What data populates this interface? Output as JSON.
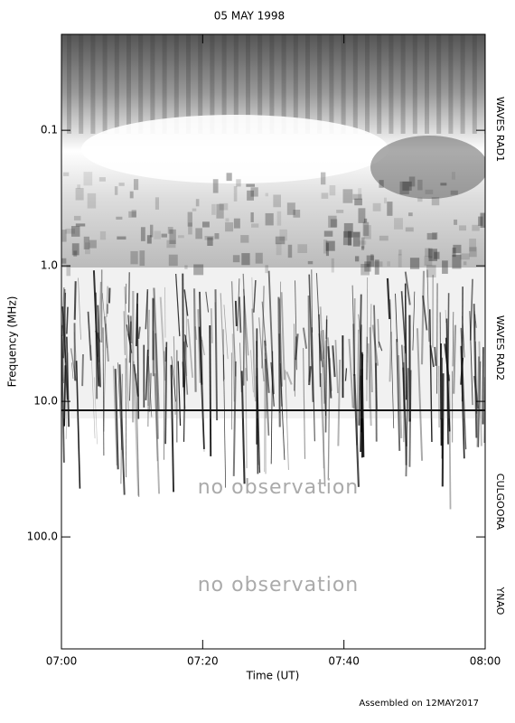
{
  "chart_data": {
    "type": "spectrogram",
    "title": "05 MAY 1998",
    "x_label": "Time (UT)",
    "y_label": "Frequency (MHz)",
    "xlim": [
      420,
      480
    ],
    "xticks": [
      {
        "value": 420,
        "label": "07:00"
      },
      {
        "value": 440,
        "label": "07:20"
      },
      {
        "value": 460,
        "label": "07:40"
      },
      {
        "value": 480,
        "label": "08:00"
      }
    ],
    "ylim": [
      0.0196,
      670
    ],
    "log_y": true,
    "y_inverted": true,
    "yticks": [
      0.1,
      {
        "value": 1,
        "label": "1.0"
      },
      {
        "value": 10,
        "label": "10.0"
      },
      {
        "value": 100,
        "label": "100.0"
      }
    ],
    "panels": [
      {
        "name": "WAVES RAD1"
      },
      {
        "name": "WAVES RAD2"
      },
      {
        "name": "CULGOORA",
        "note": "no observation"
      },
      {
        "name": "YNAO",
        "note": "no observation"
      }
    ],
    "footer": "Assembled on 12MAY2017"
  }
}
